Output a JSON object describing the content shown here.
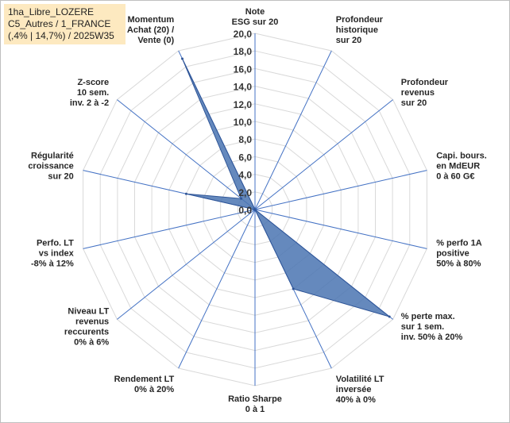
{
  "title_box": {
    "lines": [
      "1ha_Libre_LOZERE",
      "C5_Autres / 1_FRANCE",
      "(,4% | 14,7%) / 2025W35"
    ],
    "background": "#fde9c0"
  },
  "chart_data": {
    "type": "radar",
    "rmin": 0,
    "rmax": 20,
    "ticks": [
      "0,0",
      "2,0",
      "4,0",
      "6,0",
      "8,0",
      "10,0",
      "12,0",
      "14,0",
      "16,0",
      "18,0",
      "20,0"
    ],
    "axes": [
      [
        "Note",
        "ESG sur 20"
      ],
      [
        "Profondeur",
        "historique",
        "sur 20"
      ],
      [
        "Profondeur",
        "revenus",
        "sur 20"
      ],
      [
        "Capi. bours.",
        "en MdEUR",
        "0 à 60 G€"
      ],
      [
        "% perfo 1A",
        "positive",
        "50% à 80%"
      ],
      [
        "% perte max.",
        "sur 1 sem.",
        "inv. 50% à 20%"
      ],
      [
        "Volatilité LT",
        "inversée",
        "40% à 0%"
      ],
      [
        "Ratio Sharpe",
        "0 à 1"
      ],
      [
        "Rendement LT",
        "0% à 20%"
      ],
      [
        "Niveau LT",
        "revenus",
        "reccurents",
        "0% à 6%"
      ],
      [
        "Perfo. LT",
        "vs index",
        "-8% à 12%"
      ],
      [
        "Régularité",
        "croissance",
        "sur 20"
      ],
      [
        "Z-score",
        "10 sem.",
        "inv. 2 à -2"
      ],
      [
        "Momentum",
        "Achat (20) /",
        "Vente (0)"
      ]
    ],
    "series": [
      {
        "values": [
          0,
          0,
          0,
          0,
          0,
          19.5,
          10,
          0,
          0,
          0,
          0,
          8,
          2,
          19
        ]
      }
    ],
    "grid": true,
    "series_color": "#4a74b2",
    "grid_color": "#d9d9d9",
    "spoke_color": "#4472c4"
  }
}
